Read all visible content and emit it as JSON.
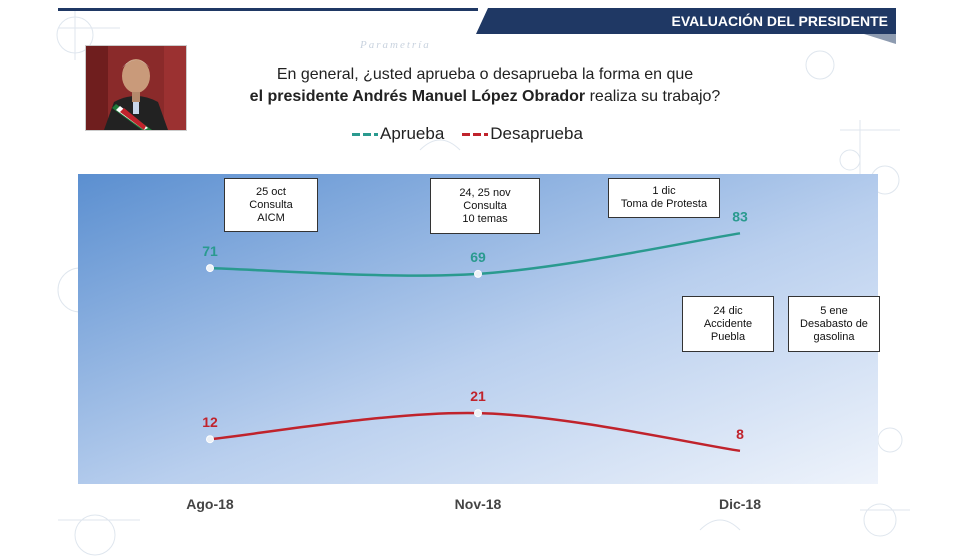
{
  "header": {
    "title": "EVALUACIÓN DEL PRESIDENTE"
  },
  "question": {
    "line1": "En general, ¿usted aprueba o desaprueba la forma en que",
    "line2_bold": "el presidente Andrés Manuel López Obrador",
    "line2_rest": " realiza su trabajo?"
  },
  "watermark": "Parametría",
  "colors": {
    "aprueba": "#2a9a8f",
    "desaprueba": "#c0232c",
    "header": "#1f3864"
  },
  "chart_data": {
    "type": "line",
    "title": "",
    "categories": [
      "Ago-18",
      "Nov-18",
      "Dic-18"
    ],
    "series": [
      {
        "name": "Aprueba",
        "values": [
          71,
          69,
          83
        ],
        "color": "#2a9a8f"
      },
      {
        "name": "Desaprueba",
        "values": [
          12,
          21,
          8
        ],
        "color": "#c0232c"
      }
    ],
    "ylim": [
      0,
      100
    ],
    "legend": "top-center",
    "annotations": [
      {
        "id": "consulta-aicm",
        "text": "25 oct\nConsulta\nAICM"
      },
      {
        "id": "consulta-10-temas",
        "text": "24, 25 nov\nConsulta\n10 temas"
      },
      {
        "id": "toma-protesta",
        "text": "1 dic\nToma de Protesta"
      },
      {
        "id": "accidente-puebla",
        "text": "24 dic\nAccidente\nPuebla"
      },
      {
        "id": "desabasto-gasolina",
        "text": "5 ene\nDesabasto de\ngasolina"
      }
    ]
  }
}
